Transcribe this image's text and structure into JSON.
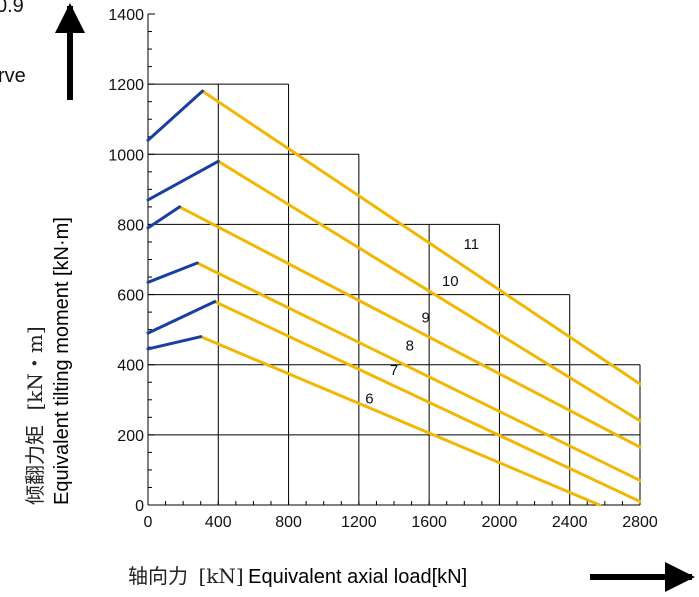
{
  "edge_text": {
    "top": "0.9",
    "second": "rve"
  },
  "chart_data": {
    "type": "line",
    "title": "",
    "xlabel_cn": "轴向力",
    "xlabel_unit": "[kN]",
    "xlabel": "Equivalent axial load[kN]",
    "ylabel_cn": "倾翻力矩",
    "ylabel_unit": "[kN・m]",
    "ylabel": "Equivalent tilting moment [kN·m]",
    "xlim": [
      0,
      2800
    ],
    "ylim": [
      0,
      1400
    ],
    "x_ticks": [
      0,
      400,
      800,
      1200,
      1600,
      2000,
      2400,
      2800
    ],
    "y_ticks": [
      0,
      200,
      400,
      600,
      800,
      1000,
      1200,
      1400
    ],
    "grid": true,
    "colors": {
      "rising": "#1a3fa0",
      "falling": "#f2b705",
      "grid": "#000000"
    },
    "series": [
      {
        "name": "6",
        "label_at": [
          1260,
          290
        ],
        "rising": [
          [
            0,
            445
          ],
          [
            300,
            480
          ]
        ],
        "falling": [
          [
            300,
            480
          ],
          [
            2570,
            0
          ]
        ]
      },
      {
        "name": "7",
        "label_at": [
          1400,
          370
        ],
        "rising": [
          [
            0,
            490
          ],
          [
            380,
            580
          ]
        ],
        "falling": [
          [
            380,
            580
          ],
          [
            2800,
            10
          ]
        ]
      },
      {
        "name": "8",
        "label_at": [
          1490,
          440
        ],
        "rising": [
          [
            0,
            635
          ],
          [
            280,
            690
          ]
        ],
        "falling": [
          [
            280,
            690
          ],
          [
            2800,
            70
          ]
        ]
      },
      {
        "name": "9",
        "label_at": [
          1580,
          520
        ],
        "rising": [
          [
            0,
            790
          ],
          [
            180,
            850
          ]
        ],
        "falling": [
          [
            180,
            850
          ],
          [
            2800,
            165
          ]
        ]
      },
      {
        "name": "10",
        "label_at": [
          1720,
          625
        ],
        "rising": [
          [
            0,
            870
          ],
          [
            400,
            980
          ]
        ],
        "falling": [
          [
            400,
            980
          ],
          [
            2800,
            240
          ]
        ]
      },
      {
        "name": "11",
        "label_at": [
          1840,
          730
        ],
        "rising": [
          [
            0,
            1040
          ],
          [
            310,
            1180
          ]
        ],
        "falling": [
          [
            310,
            1180
          ],
          [
            2800,
            345
          ]
        ]
      }
    ]
  }
}
